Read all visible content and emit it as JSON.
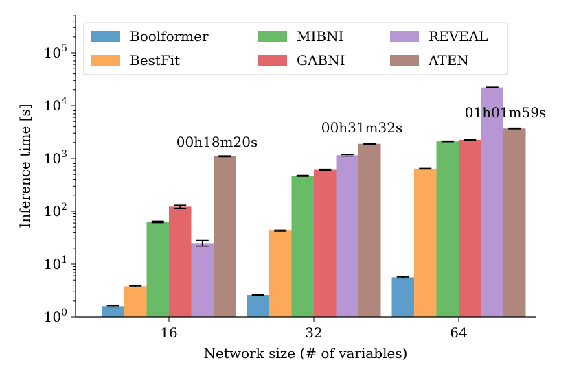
{
  "chart_data": {
    "type": "bar",
    "xlabel": "Network size (# of variables)",
    "ylabel": "Inference time [s]",
    "yscale": "log",
    "ylim": [
      1,
      500000
    ],
    "categories": [
      "16",
      "32",
      "64"
    ],
    "series": [
      {
        "name": "Boolformer",
        "color": "#5b9ec9",
        "values": [
          1.6,
          2.6,
          5.6
        ],
        "errors": [
          0.05,
          0.05,
          0.15
        ]
      },
      {
        "name": "BestFit",
        "color": "#fca95a",
        "values": [
          3.8,
          43,
          640
        ],
        "errors": [
          0.1,
          1,
          10
        ]
      },
      {
        "name": "MIBNI",
        "color": "#6abb68",
        "values": [
          63,
          470,
          2100
        ],
        "errors": [
          2,
          10,
          30
        ]
      },
      {
        "name": "GABNI",
        "color": "#e3666a",
        "values": [
          122,
          610,
          2250
        ],
        "errors": [
          8,
          15,
          40
        ]
      },
      {
        "name": "REVEAL",
        "color": "#b696d3",
        "values": [
          25,
          1150,
          22000
        ],
        "errors": [
          3,
          40,
          300
        ]
      },
      {
        "name": "ATEN",
        "color": "#b0877d",
        "values": [
          1100,
          1890,
          3700
        ],
        "errors": [
          20,
          30,
          60
        ]
      }
    ],
    "yticks": [
      {
        "base": "10",
        "exp": "0",
        "value": 1
      },
      {
        "base": "10",
        "exp": "1",
        "value": 10
      },
      {
        "base": "10",
        "exp": "2",
        "value": 100
      },
      {
        "base": "10",
        "exp": "3",
        "value": 1000
      },
      {
        "base": "10",
        "exp": "4",
        "value": 10000
      },
      {
        "base": "10",
        "exp": "5",
        "value": 100000
      }
    ],
    "annotations": [
      {
        "text": "00h18m20s",
        "category": "16"
      },
      {
        "text": "00h31m32s",
        "category": "32"
      },
      {
        "text": "01h01m59s",
        "category": "64"
      }
    ],
    "legend": {
      "placement": "top",
      "columns": 3
    }
  }
}
